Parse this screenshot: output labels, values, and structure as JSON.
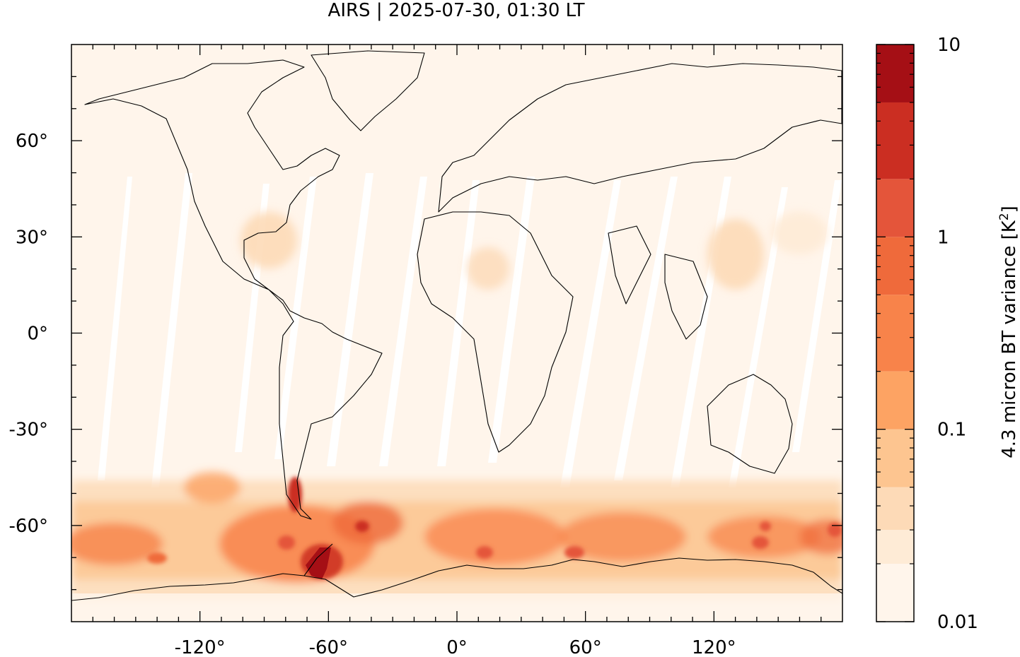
{
  "chart_data": {
    "type": "heatmap",
    "title": "AIRS | 2025-07-30, 01:30 LT",
    "xlabel": "",
    "ylabel": "",
    "xlim": [
      -180,
      180
    ],
    "ylim": [
      -90,
      90
    ],
    "x_ticks": [
      -120,
      -60,
      0,
      60,
      120
    ],
    "x_tick_labels": [
      "-120°",
      "-60°",
      "0°",
      "60°",
      "120°"
    ],
    "y_ticks": [
      60,
      30,
      0,
      -30,
      -60
    ],
    "y_tick_labels": [
      "60°",
      "30°",
      "0°",
      "-30°",
      "-60°"
    ],
    "colorbar": {
      "label": "4.3 micron BT variance [K²]",
      "label_base": "4.3 micron BT variance [K",
      "label_sup": "2",
      "label_end": "]",
      "scale": "log",
      "range": [
        0.01,
        10
      ],
      "ticks": [
        10,
        1,
        0.1,
        0.01
      ],
      "tick_labels": [
        "10",
        "1",
        "0.1",
        "0.01"
      ],
      "levels": [
        0.01,
        0.02,
        0.03,
        0.05,
        0.1,
        0.2,
        0.5,
        1,
        2,
        5,
        10
      ],
      "colors": [
        "#fff5eb",
        "#feebd6",
        "#fddab7",
        "#fdc590",
        "#fda363",
        "#f8834a",
        "#ef6a3b",
        "#e4553a",
        "#cb2e22",
        "#a50f15"
      ]
    },
    "features": {
      "grid": false,
      "coastlines": true,
      "data_gaps": "white diagonal swath gaps between satellite orbits",
      "high_variance_region": "Southern Ocean / Antarctic Peninsula, peaking near 63°S, 60°W"
    }
  },
  "colors": {
    "background": "#fff5eb",
    "gap": "#ffffff",
    "coastline": "#000000"
  }
}
